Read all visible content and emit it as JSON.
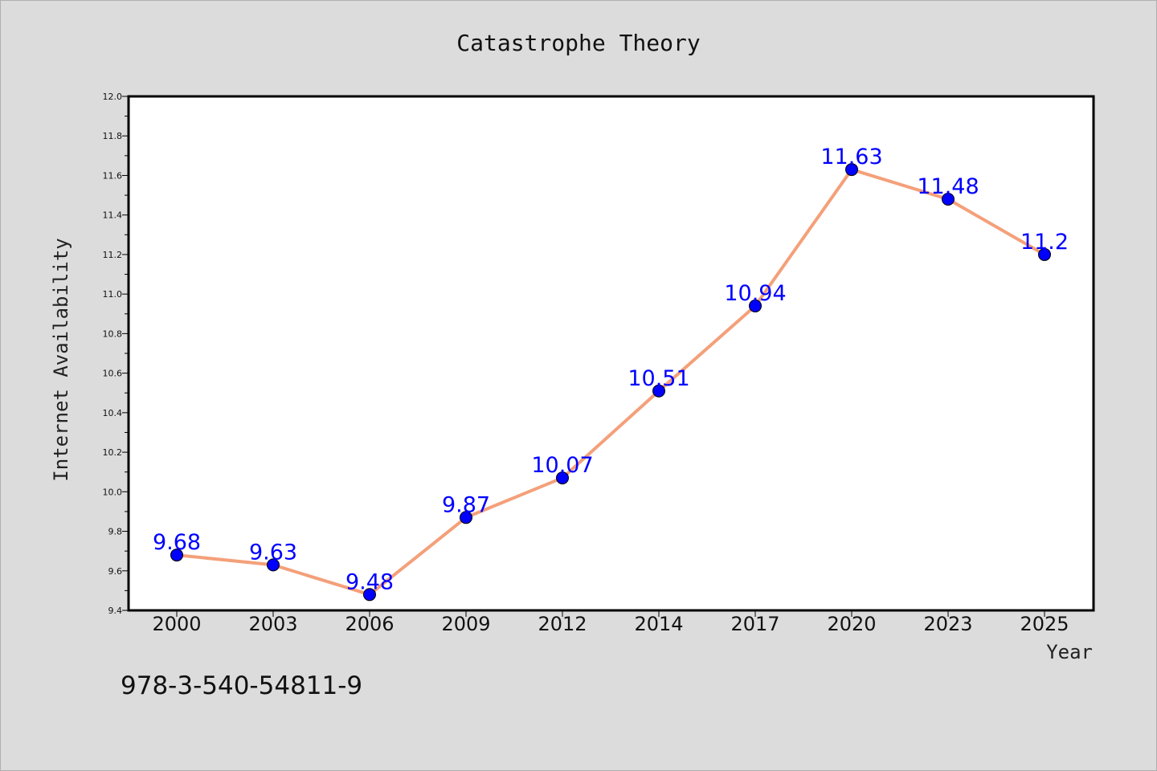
{
  "chart_data": {
    "type": "line",
    "title": "Catastrophe Theory",
    "xlabel": "Year",
    "ylabel": "Internet Availability",
    "categories": [
      "2000",
      "2003",
      "2006",
      "2009",
      "2012",
      "2014",
      "2017",
      "2020",
      "2023",
      "2025"
    ],
    "series": [
      {
        "values": [
          9.68,
          9.63,
          9.48,
          9.87,
          10.07,
          10.51,
          10.94,
          11.63,
          11.48,
          11.2
        ],
        "labels": [
          "9.68",
          "9.63",
          "9.48",
          "9.87",
          "10.07",
          "10.51",
          "10.94",
          "11.63",
          "11.48",
          "11.2"
        ],
        "line_color": "#f4a07a",
        "marker_color": "#0000ff"
      }
    ],
    "ylim": [
      9.4,
      12.0
    ],
    "yticks": [
      "9.4",
      "9.6",
      "9.8",
      "10.0",
      "10.2",
      "10.4",
      "10.6",
      "10.8",
      "11.0",
      "11.2",
      "11.4",
      "11.6",
      "11.8",
      "12.0"
    ],
    "grid": false,
    "legend": "none"
  },
  "annotation": {
    "isbn": "978-3-540-54811-9"
  },
  "colors": {
    "background": "#dcdcdc",
    "plot_background": "#ffffff",
    "data_label": "#0000ff"
  }
}
